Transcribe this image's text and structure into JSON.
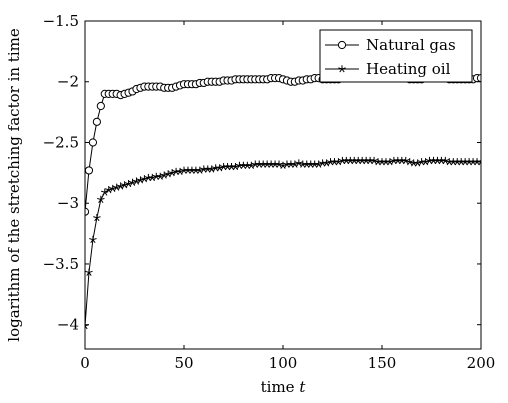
{
  "chart_data": {
    "type": "line",
    "title": "",
    "xlabel": "time",
    "xlabel_var": "t",
    "ylabel": "logarithm of the stretching factor in time",
    "xlim": [
      0,
      200
    ],
    "ylim": [
      -4.2,
      -1.5
    ],
    "xticks": [
      0,
      50,
      100,
      150,
      200
    ],
    "xtick_labels": [
      "0",
      "50",
      "100",
      "150",
      "200"
    ],
    "yticks": [
      -1.5,
      -2,
      -2.5,
      -3,
      -3.5,
      -4
    ],
    "ytick_labels": [
      "−1.5",
      "−2",
      "−2.5",
      "−3",
      "−3.5",
      "−4"
    ],
    "grid": false,
    "legend_position": "top-right",
    "x": [
      0,
      2,
      4,
      6,
      8,
      10,
      12,
      14,
      16,
      18,
      20,
      22,
      24,
      26,
      28,
      30,
      32,
      34,
      36,
      38,
      40,
      42,
      44,
      46,
      48,
      50,
      52,
      54,
      56,
      58,
      60,
      62,
      64,
      66,
      68,
      70,
      72,
      74,
      76,
      78,
      80,
      82,
      84,
      86,
      88,
      90,
      92,
      94,
      96,
      98,
      100,
      102,
      104,
      106,
      108,
      110,
      112,
      114,
      116,
      118,
      120,
      122,
      124,
      126,
      128,
      130,
      132,
      134,
      136,
      138,
      140,
      142,
      144,
      146,
      148,
      150,
      152,
      154,
      156,
      158,
      160,
      162,
      164,
      166,
      168,
      170,
      172,
      174,
      176,
      178,
      180,
      182,
      184,
      186,
      188,
      190,
      192,
      194,
      196,
      198,
      200
    ],
    "series": [
      {
        "name": "Natural gas",
        "marker": "circle",
        "values": [
          -3.07,
          -2.73,
          -2.5,
          -2.33,
          -2.2,
          -2.1,
          -2.1,
          -2.1,
          -2.1,
          -2.11,
          -2.1,
          -2.09,
          -2.08,
          -2.06,
          -2.05,
          -2.04,
          -2.04,
          -2.04,
          -2.04,
          -2.04,
          -2.05,
          -2.05,
          -2.05,
          -2.04,
          -2.03,
          -2.02,
          -2.02,
          -2.02,
          -2.02,
          -2.01,
          -2.01,
          -2.0,
          -2.0,
          -2.0,
          -2.0,
          -1.99,
          -1.99,
          -1.99,
          -1.98,
          -1.98,
          -1.98,
          -1.98,
          -1.98,
          -1.98,
          -1.98,
          -1.98,
          -1.98,
          -1.97,
          -1.97,
          -1.97,
          -1.98,
          -1.99,
          -2.0,
          -2.0,
          -1.99,
          -1.99,
          -1.98,
          -1.98,
          -1.97,
          -1.97,
          -1.98,
          -1.98,
          -1.98,
          -1.98,
          -1.98,
          -1.97,
          -1.97,
          -1.97,
          -1.97,
          -1.97,
          -1.97,
          -1.97,
          -1.97,
          -1.97,
          -1.97,
          -1.97,
          -1.96,
          -1.96,
          -1.97,
          -1.97,
          -1.97,
          -1.97,
          -1.98,
          -1.98,
          -1.98,
          -1.98,
          -1.97,
          -1.97,
          -1.97,
          -1.97,
          -1.97,
          -1.97,
          -1.98,
          -1.98,
          -1.98,
          -1.98,
          -1.98,
          -1.98,
          -1.98,
          -1.97,
          -1.97
        ]
      },
      {
        "name": "Heating oil",
        "marker": "star",
        "values": [
          -4.01,
          -3.57,
          -3.3,
          -3.12,
          -2.97,
          -2.91,
          -2.89,
          -2.88,
          -2.87,
          -2.86,
          -2.85,
          -2.84,
          -2.83,
          -2.82,
          -2.81,
          -2.8,
          -2.79,
          -2.79,
          -2.78,
          -2.78,
          -2.77,
          -2.76,
          -2.75,
          -2.74,
          -2.74,
          -2.73,
          -2.73,
          -2.73,
          -2.73,
          -2.73,
          -2.72,
          -2.72,
          -2.72,
          -2.71,
          -2.71,
          -2.7,
          -2.7,
          -2.7,
          -2.7,
          -2.69,
          -2.69,
          -2.69,
          -2.69,
          -2.68,
          -2.68,
          -2.68,
          -2.68,
          -2.68,
          -2.68,
          -2.68,
          -2.69,
          -2.68,
          -2.68,
          -2.68,
          -2.67,
          -2.68,
          -2.68,
          -2.68,
          -2.68,
          -2.68,
          -2.67,
          -2.67,
          -2.66,
          -2.66,
          -2.66,
          -2.65,
          -2.65,
          -2.65,
          -2.65,
          -2.65,
          -2.65,
          -2.65,
          -2.65,
          -2.65,
          -2.66,
          -2.66,
          -2.66,
          -2.66,
          -2.65,
          -2.65,
          -2.65,
          -2.65,
          -2.66,
          -2.67,
          -2.67,
          -2.66,
          -2.66,
          -2.65,
          -2.65,
          -2.65,
          -2.65,
          -2.65,
          -2.66,
          -2.66,
          -2.66,
          -2.66,
          -2.66,
          -2.66,
          -2.66,
          -2.66,
          -2.66
        ]
      }
    ]
  }
}
